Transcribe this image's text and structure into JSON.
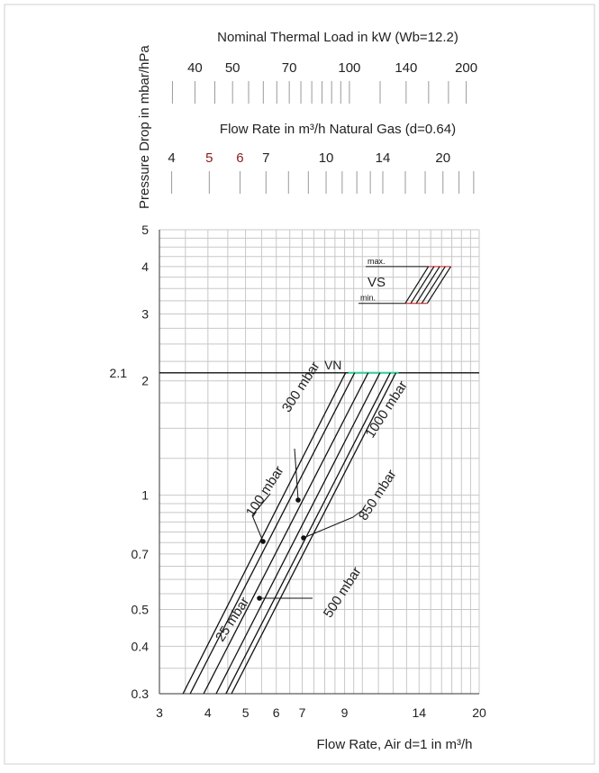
{
  "chart_data": {
    "type": "line",
    "y_axis_title": "Pressure Drop in mbar/hPa",
    "x_axis_title": "Flow Rate, Air d=1 in m³/h",
    "top_scale_1": {
      "title": "Nominal Thermal Load in kW (Wb=12.2)",
      "labels": [
        "40",
        "50",
        "70",
        "100",
        "140",
        "200"
      ],
      "values": [
        40,
        50,
        70,
        100,
        140,
        200
      ]
    },
    "top_scale_2": {
      "title": "Flow Rate in m³/h Natural Gas (d=0.64)",
      "labels": [
        "4",
        "5",
        "6",
        "7",
        "10",
        "14",
        "20"
      ],
      "values": [
        4,
        5,
        6,
        7,
        10,
        14,
        20
      ]
    },
    "x_scale": "log",
    "y_scale": "log",
    "x_range": [
      3,
      20
    ],
    "y_range": [
      0.3,
      5
    ],
    "x_tick_labels": [
      "3",
      "4",
      "5",
      "6",
      "7",
      "9",
      "14",
      "20"
    ],
    "x_ticks": [
      3,
      4,
      5,
      6,
      7,
      9,
      14,
      20
    ],
    "y_tick_labels": [
      "0.3",
      "0.4",
      "0.5",
      "0.7",
      "1",
      "2",
      "3",
      "4",
      "5"
    ],
    "y_ticks": [
      0.3,
      0.4,
      0.5,
      0.7,
      1,
      2,
      3,
      4,
      5
    ],
    "extra_y_label": "2.1",
    "reference_lines": [
      {
        "label": "VN",
        "y": 2.1
      }
    ],
    "band": {
      "label": "VS",
      "max_label": "max.",
      "min_label": "min.",
      "y_max": 4,
      "y_min": 3.2
    },
    "series": [
      {
        "name": "25 mbar",
        "x": [
          3.45,
          9.05
        ],
        "y": [
          0.3,
          2.1
        ]
      },
      {
        "name": "100 mbar",
        "x": [
          3.6,
          9.55
        ],
        "y": [
          0.3,
          2.1
        ]
      },
      {
        "name": "300 mbar",
        "x": [
          3.9,
          10.35
        ],
        "y": [
          0.3,
          2.1
        ]
      },
      {
        "name": "500 mbar",
        "x": [
          4.2,
          11.1
        ],
        "y": [
          0.3,
          2.1
        ]
      },
      {
        "name": "850 mbar",
        "x": [
          4.45,
          11.8
        ],
        "y": [
          0.3,
          2.1
        ]
      },
      {
        "name": "1000 mbar",
        "x": [
          4.6,
          12.2
        ],
        "y": [
          0.3,
          2.1
        ]
      }
    ],
    "grid": true
  }
}
